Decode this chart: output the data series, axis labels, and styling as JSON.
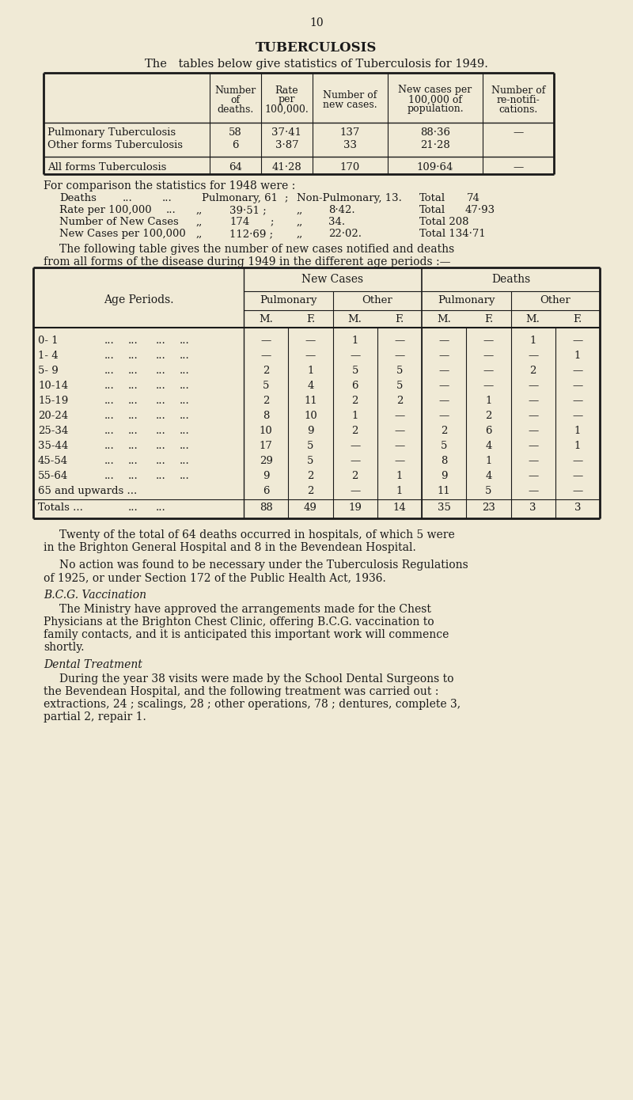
{
  "bg_color": "#f0ead6",
  "text_color": "#1a1a1a",
  "page_number": "10",
  "title": "TUBERCULOSIS",
  "subtitle": "The tables below give statistics of Tuberculosis for 1949.",
  "table1_headers_col1": [
    "Number",
    "of",
    "deaths."
  ],
  "table1_headers_col2": [
    "Rate",
    "per",
    "100,000."
  ],
  "table1_headers_col3": [
    "Number of",
    "new cases."
  ],
  "table1_headers_col4": [
    "New cases per",
    "100,000 of",
    "population."
  ],
  "table1_headers_col5": [
    "Number of",
    "re-notifi-",
    "cations."
  ],
  "table1_rows": [
    [
      "Pulmonary Tuberculosis",
      "58",
      "37·41",
      "137",
      "88·36",
      "—"
    ],
    [
      "Other forms Tuberculosis",
      "6",
      "3·87",
      "33",
      "21·28",
      ""
    ],
    [
      "All forms Tuberculosis",
      "64",
      "41·28",
      "170",
      "109·64",
      "—"
    ]
  ],
  "comp_line0": "For comparison the statistics for 1948 were :",
  "comp_rows": [
    [
      "Deaths",
      "...",
      "...",
      "Pulmonary, 61",
      ";",
      "Non-Pulmonary, 13.",
      "Total",
      "74"
    ],
    [
      "Rate per 100,000",
      "...",
      ",,",
      "39·51 ;",
      ",,",
      "8·42.",
      "Total",
      "47·93"
    ],
    [
      "Number of New Cases",
      ",,",
      "174",
      ";",
      ",,",
      "34.",
      "Total 208",
      ""
    ],
    [
      "New Cases per 100,000",
      ",,",
      "112·69 ;",
      ",,",
      "22·02.",
      "Total 134·71",
      "",
      ""
    ]
  ],
  "table2_intro1": "The following table gives the number of new cases notified and deaths",
  "table2_intro2": "from all forms of the disease during 1949 in the different age periods :—",
  "table2_rows": [
    [
      "0- 1",
      "—",
      "—",
      "1",
      "—",
      "—",
      "—",
      "1",
      "—"
    ],
    [
      "1- 4",
      "—",
      "—",
      "—",
      "—",
      "—",
      "—",
      "—",
      "1"
    ],
    [
      "5- 9",
      "2",
      "1",
      "5",
      "5",
      "—",
      "—",
      "2",
      "—"
    ],
    [
      "10-14",
      "5",
      "4",
      "6",
      "5",
      "—",
      "—",
      "—",
      "—"
    ],
    [
      "15-19",
      "2",
      "11",
      "2",
      "2",
      "—",
      "1",
      "—",
      "—"
    ],
    [
      "20-24",
      "8",
      "10",
      "1",
      "—",
      "—",
      "2",
      "—",
      "—"
    ],
    [
      "25-34",
      "10",
      "9",
      "2",
      "—",
      "2",
      "6",
      "—",
      "1"
    ],
    [
      "35-44",
      "17",
      "5",
      "—",
      "—",
      "5",
      "4",
      "—",
      "1"
    ],
    [
      "45-54",
      "29",
      "5",
      "—",
      "—",
      "8",
      "1",
      "—",
      "—"
    ],
    [
      "55-64",
      "9",
      "2",
      "2",
      "1",
      "9",
      "4",
      "—",
      "—"
    ],
    [
      "65 and upwards ...",
      "6",
      "2",
      "—",
      "1",
      "11",
      "5",
      "—",
      "—"
    ]
  ],
  "table2_totals": [
    "88",
    "49",
    "19",
    "14",
    "35",
    "23",
    "3",
    "3"
  ],
  "para1_line1": "Twenty of the total of 64 deaths occurred in hospitals, of which 5 were",
  "para1_line2": "in the Brighton General Hospital and 8 in the Bevendean Hospital.",
  "para2_line1": "No action was found to be necessary under the Tuberculosis Regulations",
  "para2_line2": "of 1925, or under Section 172 of the Public Health Act, 1936.",
  "bcg_title": "B.C.G. Vaccination",
  "bcg_line1": "The Ministry have approved the arrangements made for the Chest",
  "bcg_line2": "Physicians at the Brighton Chest Clinic, offering B.C.G. vaccination to",
  "bcg_line3": "family contacts, and it is anticipated this important work will commence",
  "bcg_line4": "shortly.",
  "dent_title": "Dental Treatment",
  "dent_line1": "During the year 38 visits were made by the School Dental Surgeons to",
  "dent_line2": "the Bevendean Hospital, and the following treatment was carried out :",
  "dent_line3": "extractions, 24 ; scalings, 28 ; other operations, 78 ; dentures, complete 3,",
  "dent_line4": "partial 2, repair 1."
}
